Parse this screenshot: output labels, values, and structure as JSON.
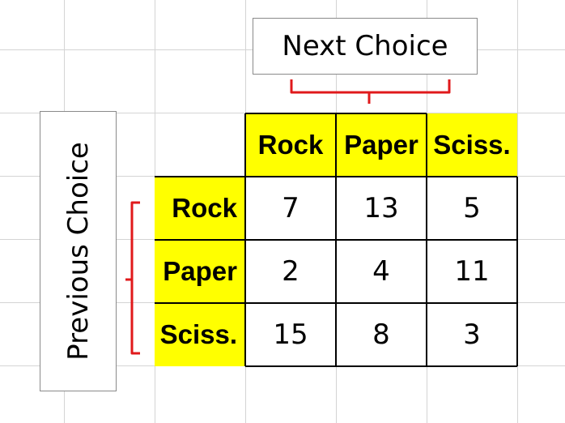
{
  "column_label": "Next Choice",
  "row_label": "Previous Choice",
  "columns": [
    "Rock",
    "Paper",
    "Sciss."
  ],
  "rows": [
    {
      "label": "Rock",
      "values": [
        "7",
        "13",
        "5"
      ]
    },
    {
      "label": "Paper",
      "values": [
        "2",
        "4",
        "11"
      ]
    },
    {
      "label": "Sciss.",
      "values": [
        "15",
        "8",
        "3"
      ]
    }
  ],
  "colors": {
    "header_fill": "#ffff00",
    "bracket": "#e0191b",
    "gridline": "#d4d4d4",
    "table_border": "#000000"
  }
}
